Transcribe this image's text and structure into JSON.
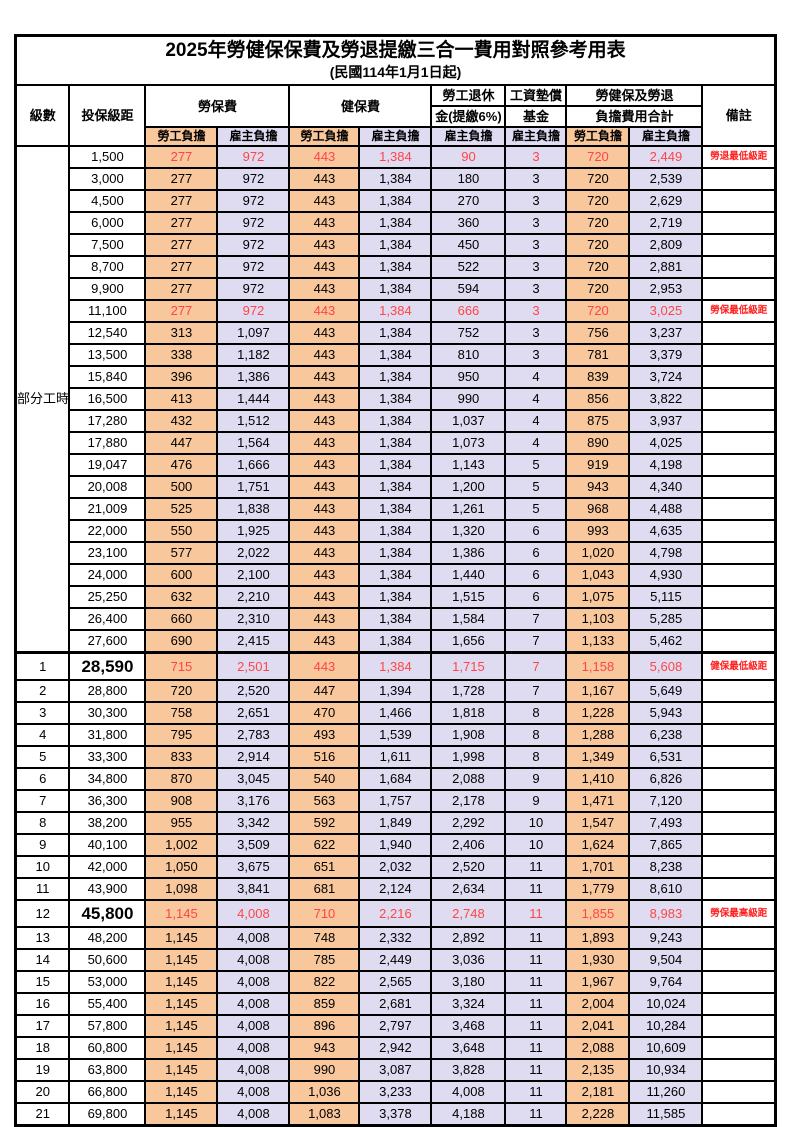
{
  "title": "2025年勞健保保費及勞退提繳三合一費用對照參考用表",
  "subtitle": "(民國114年1月1日起)",
  "colors": {
    "employee_bg": "#F9C79C",
    "employer_bg": "#DFDCF2",
    "highlight_value_red": "#FF4545",
    "highlight_note_red": "#FF1E1E",
    "border": "#000000"
  },
  "header": {
    "level": "級數",
    "bracket": "投保級距",
    "labor_ins": "勞保費",
    "health_ins": "健保費",
    "pension_line1": "勞工退休",
    "pension_line2": "金(提繳6%)",
    "wage_fund_line1": "工資墊償",
    "wage_fund_line2": "基金",
    "total_line1": "勞健保及勞退",
    "total_line2": "負擔費用合計",
    "note": "備註",
    "employee": "勞工負擔",
    "employer": "雇主負擔"
  },
  "part_time_label": "部分工時",
  "part_time_rowspan": 23,
  "column_semantics": [
    "labor-employee",
    "labor-employer",
    "health-employee",
    "health-employer",
    "pension-employer",
    "wage-fund-employer",
    "total-employee",
    "total-employer"
  ],
  "rows": [
    {
      "level": "",
      "bracket": "1,500",
      "v": [
        "277",
        "972",
        "443",
        "1,384",
        "90",
        "3",
        "720",
        "2,449"
      ],
      "note": "勞退最低級距",
      "red": true,
      "big": false,
      "sect": false
    },
    {
      "level": "",
      "bracket": "3,000",
      "v": [
        "277",
        "972",
        "443",
        "1,384",
        "180",
        "3",
        "720",
        "2,539"
      ],
      "note": "",
      "red": false,
      "big": false,
      "sect": false
    },
    {
      "level": "",
      "bracket": "4,500",
      "v": [
        "277",
        "972",
        "443",
        "1,384",
        "270",
        "3",
        "720",
        "2,629"
      ],
      "note": "",
      "red": false,
      "big": false,
      "sect": false
    },
    {
      "level": "",
      "bracket": "6,000",
      "v": [
        "277",
        "972",
        "443",
        "1,384",
        "360",
        "3",
        "720",
        "2,719"
      ],
      "note": "",
      "red": false,
      "big": false,
      "sect": false
    },
    {
      "level": "",
      "bracket": "7,500",
      "v": [
        "277",
        "972",
        "443",
        "1,384",
        "450",
        "3",
        "720",
        "2,809"
      ],
      "note": "",
      "red": false,
      "big": false,
      "sect": false
    },
    {
      "level": "",
      "bracket": "8,700",
      "v": [
        "277",
        "972",
        "443",
        "1,384",
        "522",
        "3",
        "720",
        "2,881"
      ],
      "note": "",
      "red": false,
      "big": false,
      "sect": false
    },
    {
      "level": "",
      "bracket": "9,900",
      "v": [
        "277",
        "972",
        "443",
        "1,384",
        "594",
        "3",
        "720",
        "2,953"
      ],
      "note": "",
      "red": false,
      "big": false,
      "sect": false
    },
    {
      "level": "",
      "bracket": "11,100",
      "v": [
        "277",
        "972",
        "443",
        "1,384",
        "666",
        "3",
        "720",
        "3,025"
      ],
      "note": "勞保最低級距",
      "red": true,
      "big": false,
      "sect": false
    },
    {
      "level": "",
      "bracket": "12,540",
      "v": [
        "313",
        "1,097",
        "443",
        "1,384",
        "752",
        "3",
        "756",
        "3,237"
      ],
      "note": "",
      "red": false,
      "big": false,
      "sect": false
    },
    {
      "level": "",
      "bracket": "13,500",
      "v": [
        "338",
        "1,182",
        "443",
        "1,384",
        "810",
        "3",
        "781",
        "3,379"
      ],
      "note": "",
      "red": false,
      "big": false,
      "sect": false
    },
    {
      "level": "",
      "bracket": "15,840",
      "v": [
        "396",
        "1,386",
        "443",
        "1,384",
        "950",
        "4",
        "839",
        "3,724"
      ],
      "note": "",
      "red": false,
      "big": false,
      "sect": false
    },
    {
      "level": "",
      "bracket": "16,500",
      "v": [
        "413",
        "1,444",
        "443",
        "1,384",
        "990",
        "4",
        "856",
        "3,822"
      ],
      "note": "",
      "red": false,
      "big": false,
      "sect": false
    },
    {
      "level": "",
      "bracket": "17,280",
      "v": [
        "432",
        "1,512",
        "443",
        "1,384",
        "1,037",
        "4",
        "875",
        "3,937"
      ],
      "note": "",
      "red": false,
      "big": false,
      "sect": false
    },
    {
      "level": "",
      "bracket": "17,880",
      "v": [
        "447",
        "1,564",
        "443",
        "1,384",
        "1,073",
        "4",
        "890",
        "4,025"
      ],
      "note": "",
      "red": false,
      "big": false,
      "sect": false
    },
    {
      "level": "",
      "bracket": "19,047",
      "v": [
        "476",
        "1,666",
        "443",
        "1,384",
        "1,143",
        "5",
        "919",
        "4,198"
      ],
      "note": "",
      "red": false,
      "big": false,
      "sect": false
    },
    {
      "level": "",
      "bracket": "20,008",
      "v": [
        "500",
        "1,751",
        "443",
        "1,384",
        "1,200",
        "5",
        "943",
        "4,340"
      ],
      "note": "",
      "red": false,
      "big": false,
      "sect": false
    },
    {
      "level": "",
      "bracket": "21,009",
      "v": [
        "525",
        "1,838",
        "443",
        "1,384",
        "1,261",
        "5",
        "968",
        "4,488"
      ],
      "note": "",
      "red": false,
      "big": false,
      "sect": false
    },
    {
      "level": "",
      "bracket": "22,000",
      "v": [
        "550",
        "1,925",
        "443",
        "1,384",
        "1,320",
        "6",
        "993",
        "4,635"
      ],
      "note": "",
      "red": false,
      "big": false,
      "sect": false
    },
    {
      "level": "",
      "bracket": "23,100",
      "v": [
        "577",
        "2,022",
        "443",
        "1,384",
        "1,386",
        "6",
        "1,020",
        "4,798"
      ],
      "note": "",
      "red": false,
      "big": false,
      "sect": false
    },
    {
      "level": "",
      "bracket": "24,000",
      "v": [
        "600",
        "2,100",
        "443",
        "1,384",
        "1,440",
        "6",
        "1,043",
        "4,930"
      ],
      "note": "",
      "red": false,
      "big": false,
      "sect": false
    },
    {
      "level": "",
      "bracket": "25,250",
      "v": [
        "632",
        "2,210",
        "443",
        "1,384",
        "1,515",
        "6",
        "1,075",
        "5,115"
      ],
      "note": "",
      "red": false,
      "big": false,
      "sect": false
    },
    {
      "level": "",
      "bracket": "26,400",
      "v": [
        "660",
        "2,310",
        "443",
        "1,384",
        "1,584",
        "7",
        "1,103",
        "5,285"
      ],
      "note": "",
      "red": false,
      "big": false,
      "sect": false
    },
    {
      "level": "",
      "bracket": "27,600",
      "v": [
        "690",
        "2,415",
        "443",
        "1,384",
        "1,656",
        "7",
        "1,133",
        "5,462"
      ],
      "note": "",
      "red": false,
      "big": false,
      "sect": false
    },
    {
      "level": "1",
      "bracket": "28,590",
      "v": [
        "715",
        "2,501",
        "443",
        "1,384",
        "1,715",
        "7",
        "1,158",
        "5,608"
      ],
      "note": "健保最低級距",
      "red": true,
      "big": true,
      "sect": true
    },
    {
      "level": "2",
      "bracket": "28,800",
      "v": [
        "720",
        "2,520",
        "447",
        "1,394",
        "1,728",
        "7",
        "1,167",
        "5,649"
      ],
      "note": "",
      "red": false,
      "big": false,
      "sect": false
    },
    {
      "level": "3",
      "bracket": "30,300",
      "v": [
        "758",
        "2,651",
        "470",
        "1,466",
        "1,818",
        "8",
        "1,228",
        "5,943"
      ],
      "note": "",
      "red": false,
      "big": false,
      "sect": false
    },
    {
      "level": "4",
      "bracket": "31,800",
      "v": [
        "795",
        "2,783",
        "493",
        "1,539",
        "1,908",
        "8",
        "1,288",
        "6,238"
      ],
      "note": "",
      "red": false,
      "big": false,
      "sect": false
    },
    {
      "level": "5",
      "bracket": "33,300",
      "v": [
        "833",
        "2,914",
        "516",
        "1,611",
        "1,998",
        "8",
        "1,349",
        "6,531"
      ],
      "note": "",
      "red": false,
      "big": false,
      "sect": false
    },
    {
      "level": "6",
      "bracket": "34,800",
      "v": [
        "870",
        "3,045",
        "540",
        "1,684",
        "2,088",
        "9",
        "1,410",
        "6,826"
      ],
      "note": "",
      "red": false,
      "big": false,
      "sect": false
    },
    {
      "level": "7",
      "bracket": "36,300",
      "v": [
        "908",
        "3,176",
        "563",
        "1,757",
        "2,178",
        "9",
        "1,471",
        "7,120"
      ],
      "note": "",
      "red": false,
      "big": false,
      "sect": false
    },
    {
      "level": "8",
      "bracket": "38,200",
      "v": [
        "955",
        "3,342",
        "592",
        "1,849",
        "2,292",
        "10",
        "1,547",
        "7,493"
      ],
      "note": "",
      "red": false,
      "big": false,
      "sect": false
    },
    {
      "level": "9",
      "bracket": "40,100",
      "v": [
        "1,002",
        "3,509",
        "622",
        "1,940",
        "2,406",
        "10",
        "1,624",
        "7,865"
      ],
      "note": "",
      "red": false,
      "big": false,
      "sect": false
    },
    {
      "level": "10",
      "bracket": "42,000",
      "v": [
        "1,050",
        "3,675",
        "651",
        "2,032",
        "2,520",
        "11",
        "1,701",
        "8,238"
      ],
      "note": "",
      "red": false,
      "big": false,
      "sect": false
    },
    {
      "level": "11",
      "bracket": "43,900",
      "v": [
        "1,098",
        "3,841",
        "681",
        "2,124",
        "2,634",
        "11",
        "1,779",
        "8,610"
      ],
      "note": "",
      "red": false,
      "big": false,
      "sect": false
    },
    {
      "level": "12",
      "bracket": "45,800",
      "v": [
        "1,145",
        "4,008",
        "710",
        "2,216",
        "2,748",
        "11",
        "1,855",
        "8,983"
      ],
      "note": "勞保最高級距",
      "red": true,
      "big": true,
      "sect": false
    },
    {
      "level": "13",
      "bracket": "48,200",
      "v": [
        "1,145",
        "4,008",
        "748",
        "2,332",
        "2,892",
        "11",
        "1,893",
        "9,243"
      ],
      "note": "",
      "red": false,
      "big": false,
      "sect": false
    },
    {
      "level": "14",
      "bracket": "50,600",
      "v": [
        "1,145",
        "4,008",
        "785",
        "2,449",
        "3,036",
        "11",
        "1,930",
        "9,504"
      ],
      "note": "",
      "red": false,
      "big": false,
      "sect": false
    },
    {
      "level": "15",
      "bracket": "53,000",
      "v": [
        "1,145",
        "4,008",
        "822",
        "2,565",
        "3,180",
        "11",
        "1,967",
        "9,764"
      ],
      "note": "",
      "red": false,
      "big": false,
      "sect": false
    },
    {
      "level": "16",
      "bracket": "55,400",
      "v": [
        "1,145",
        "4,008",
        "859",
        "2,681",
        "3,324",
        "11",
        "2,004",
        "10,024"
      ],
      "note": "",
      "red": false,
      "big": false,
      "sect": false
    },
    {
      "level": "17",
      "bracket": "57,800",
      "v": [
        "1,145",
        "4,008",
        "896",
        "2,797",
        "3,468",
        "11",
        "2,041",
        "10,284"
      ],
      "note": "",
      "red": false,
      "big": false,
      "sect": false
    },
    {
      "level": "18",
      "bracket": "60,800",
      "v": [
        "1,145",
        "4,008",
        "943",
        "2,942",
        "3,648",
        "11",
        "2,088",
        "10,609"
      ],
      "note": "",
      "red": false,
      "big": false,
      "sect": false
    },
    {
      "level": "19",
      "bracket": "63,800",
      "v": [
        "1,145",
        "4,008",
        "990",
        "3,087",
        "3,828",
        "11",
        "2,135",
        "10,934"
      ],
      "note": "",
      "red": false,
      "big": false,
      "sect": false
    },
    {
      "level": "20",
      "bracket": "66,800",
      "v": [
        "1,145",
        "4,008",
        "1,036",
        "3,233",
        "4,008",
        "11",
        "2,181",
        "11,260"
      ],
      "note": "",
      "red": false,
      "big": false,
      "sect": false
    },
    {
      "level": "21",
      "bracket": "69,800",
      "v": [
        "1,145",
        "4,008",
        "1,083",
        "3,378",
        "4,188",
        "11",
        "2,228",
        "11,585"
      ],
      "note": "",
      "red": false,
      "big": false,
      "sect": false
    }
  ]
}
